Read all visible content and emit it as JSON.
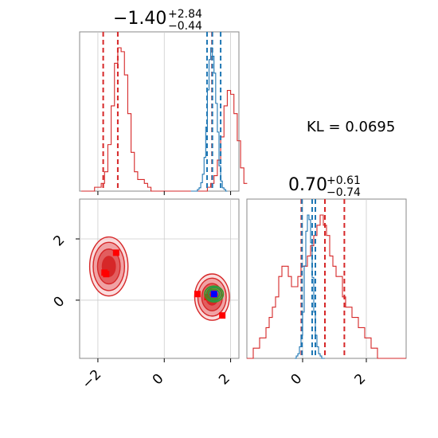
{
  "kl_label": "KL = 0.0695",
  "title_x": {
    "median": "−1.40",
    "plus": "+2.84",
    "minus": "−0.44"
  },
  "title_y": {
    "median": "0.70",
    "plus": "+0.61",
    "minus": "−0.74"
  },
  "colors": {
    "red": "#d62728",
    "blue": "#1f77b4",
    "green": "#2ca02c",
    "marker_blue": "#0000ff",
    "marker_red": "#ff0000"
  },
  "chart_data": {
    "type": "corner",
    "grid": true,
    "x_axis": {
      "lim": [
        -2.55,
        2.25
      ],
      "ticks": [
        -2,
        0,
        2
      ],
      "tick_labels": [
        "−2",
        "0",
        "2"
      ]
    },
    "y_axis": {
      "lim": [
        -1.9,
        3.3
      ],
      "ticks": [
        0,
        2
      ],
      "tick_labels": [
        "0",
        "2"
      ]
    },
    "y_marginal_axis": {
      "lim": [
        -1.75,
        3.25
      ],
      "ticks": [
        0,
        2
      ],
      "tick_labels": [
        "0",
        "2"
      ]
    },
    "series": [
      {
        "color": "#d62728",
        "x_quantiles": [
          -1.84,
          -1.4,
          1.44
        ],
        "y_quantiles": [
          -0.04,
          0.7,
          1.31
        ],
        "x_hist": {
          "start": -2.5,
          "step": 0.1,
          "counts": [
            0,
            0,
            0,
            0,
            1,
            1,
            2,
            5,
            12,
            22,
            33,
            37,
            36,
            30,
            20,
            10,
            5,
            3,
            3,
            2,
            1,
            0,
            0,
            0,
            0,
            0,
            0,
            0,
            0,
            0,
            0,
            0,
            0,
            0,
            0,
            0,
            0,
            0,
            1,
            2,
            4,
            8,
            14,
            22,
            26,
            25,
            20,
            13,
            6,
            2
          ]
        },
        "y_hist": {
          "start": -1.75,
          "step": 0.1,
          "counts": [
            0,
            0,
            1,
            1,
            2,
            2,
            3,
            4,
            5,
            6,
            8,
            9,
            9,
            8,
            7,
            7,
            8,
            9,
            9,
            10,
            11,
            12,
            13,
            14,
            13,
            12,
            10,
            9,
            8,
            8,
            6,
            5,
            5,
            4,
            4,
            3,
            3,
            2,
            2,
            1,
            1,
            0,
            0,
            0,
            0,
            0,
            0,
            0,
            0,
            0
          ]
        },
        "clusters": [
          {
            "x": -1.67,
            "y": 1.1,
            "sx": 0.42,
            "sy": 0.7
          },
          {
            "x": 1.44,
            "y": 0.1,
            "sx": 0.38,
            "sy": 0.55
          }
        ],
        "markers": [
          [
            -1.45,
            1.55
          ],
          [
            -1.75,
            0.85
          ],
          [
            -1.8,
            0.9
          ],
          [
            1.0,
            0.2
          ],
          [
            1.3,
            0.1
          ],
          [
            1.75,
            -0.5
          ]
        ]
      },
      {
        "color": "#1f77b4",
        "x_quantiles": [
          1.29,
          1.45,
          1.7
        ],
        "y_quantiles": [
          -0.02,
          0.3,
          0.4
        ],
        "x_hist": {
          "start": 0.8,
          "step": 0.05,
          "counts": [
            0,
            0,
            0,
            0,
            1,
            2,
            5,
            10,
            20,
            38,
            60,
            78,
            85,
            80,
            70,
            52,
            35,
            15,
            6,
            2,
            1,
            0
          ]
        },
        "y_hist": {
          "start": -0.25,
          "step": 0.05,
          "counts": [
            0,
            1,
            2,
            5,
            10,
            20,
            40,
            55,
            62,
            60,
            50,
            35,
            20,
            10,
            5,
            2,
            1,
            0,
            0
          ]
        },
        "clusters": [
          {
            "x": 1.5,
            "y": 0.2,
            "sx": 0.15,
            "sy": 0.15
          }
        ],
        "markers": [
          [
            1.5,
            0.2
          ]
        ]
      },
      {
        "color": "#2ca02c",
        "clusters": [
          {
            "x": 1.5,
            "y": 0.2,
            "sx": 0.28,
            "sy": 0.26
          }
        ]
      }
    ]
  }
}
